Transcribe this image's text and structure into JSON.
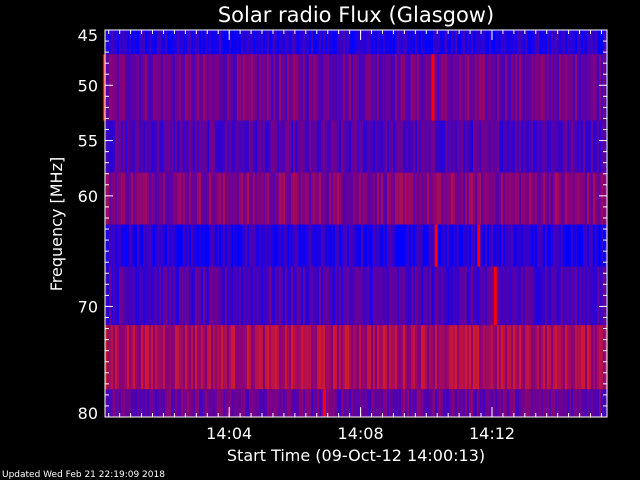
{
  "chart_data": {
    "type": "heatmap",
    "title": "Solar radio Flux (Glasgow)",
    "ylabel": "Frequency [MHz]",
    "xlabel": "Start Time (09-Oct-12 14:00:13)",
    "ylim": [
      45,
      80
    ],
    "y_reversed": true,
    "y_ticks": [
      45,
      50,
      55,
      60,
      70,
      80
    ],
    "x_range_minutes": [
      14.0,
      14.255
    ],
    "x_ticks": [
      {
        "label": "14:04",
        "minutes": 4
      },
      {
        "label": "14:08",
        "minutes": 8
      },
      {
        "label": "14:12",
        "minutes": 12
      }
    ],
    "x_range": [
      "14:00:13",
      "14:15:30"
    ],
    "colors": {
      "low": "#0000ff",
      "mid": "#800080",
      "high": "#ff0000",
      "background": "#000000",
      "axes": "#ffffff"
    },
    "bands": [
      {
        "freq_from": 45.0,
        "freq_to": 47.2,
        "level": 0.12
      },
      {
        "freq_from": 47.2,
        "freq_to": 53.2,
        "level": 0.42
      },
      {
        "freq_from": 53.2,
        "freq_to": 57.9,
        "level": 0.3
      },
      {
        "freq_from": 57.9,
        "freq_to": 62.6,
        "level": 0.5
      },
      {
        "freq_from": 62.6,
        "freq_to": 66.4,
        "level": 0.14
      },
      {
        "freq_from": 66.4,
        "freq_to": 71.7,
        "level": 0.28
      },
      {
        "freq_from": 71.7,
        "freq_to": 77.5,
        "level": 0.66
      },
      {
        "freq_from": 77.5,
        "freq_to": 80.0,
        "level": 0.4
      }
    ],
    "bursts": [
      {
        "minutes": 0.2,
        "freq_from": 47.2,
        "freq_to": 53.2
      },
      {
        "minutes": 10.2,
        "freq_from": 47.2,
        "freq_to": 53.2
      },
      {
        "minutes": 10.3,
        "freq_from": 62.6,
        "freq_to": 66.4
      },
      {
        "minutes": 11.6,
        "freq_from": 62.6,
        "freq_to": 66.4
      },
      {
        "minutes": 12.1,
        "freq_from": 66.4,
        "freq_to": 71.7
      },
      {
        "minutes": 6.9,
        "freq_from": 77.5,
        "freq_to": 80.0
      }
    ]
  },
  "footer": {
    "updated": "Updated Wed Feb 21 22:19:09 2018"
  }
}
